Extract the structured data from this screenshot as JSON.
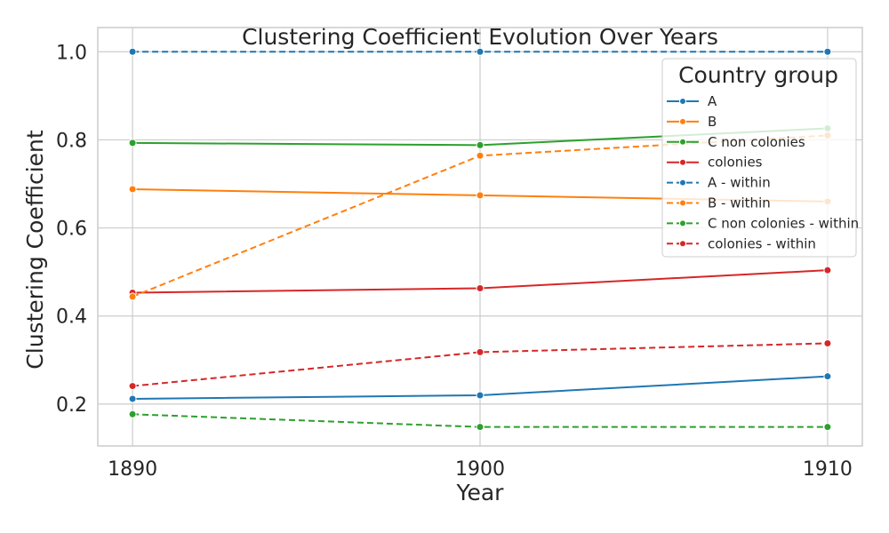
{
  "chart_data": {
    "type": "line",
    "title": "Clustering Coefficient Evolution Over Years",
    "xlabel": "Year",
    "ylabel": "Clustering Coefficient",
    "x": [
      1890,
      1900,
      1910
    ],
    "x_tick_labels": [
      "1890",
      "1900",
      "1910"
    ],
    "y_ticks": [
      0.2,
      0.4,
      0.6,
      0.8,
      1.0
    ],
    "y_tick_labels": [
      "0.2",
      "0.4",
      "0.6",
      "0.8",
      "1.0"
    ],
    "xlim": [
      1889,
      1911
    ],
    "ylim": [
      0.105,
      1.055
    ],
    "grid": true,
    "legend": {
      "title": "Country group",
      "placement": "top-right"
    },
    "series": [
      {
        "name": "A",
        "color": "#1f77b4",
        "dashed": false,
        "values": [
          0.212,
          0.22,
          0.263
        ]
      },
      {
        "name": "B",
        "color": "#ff7f0e",
        "dashed": false,
        "values": [
          0.688,
          0.674,
          0.66
        ]
      },
      {
        "name": "C non colonies",
        "color": "#2ca02c",
        "dashed": false,
        "values": [
          0.793,
          0.788,
          0.826
        ]
      },
      {
        "name": "colonies",
        "color": "#d62728",
        "dashed": false,
        "values": [
          0.453,
          0.463,
          0.504
        ]
      },
      {
        "name": "A - within",
        "color": "#1f77b4",
        "dashed": true,
        "values": [
          1.0,
          1.0,
          1.0
        ]
      },
      {
        "name": "B - within",
        "color": "#ff7f0e",
        "dashed": true,
        "values": [
          0.444,
          0.764,
          0.81
        ]
      },
      {
        "name": "C non colonies - within",
        "color": "#2ca02c",
        "dashed": true,
        "values": [
          0.177,
          0.148,
          0.148
        ]
      },
      {
        "name": "colonies - within",
        "color": "#d62728",
        "dashed": true,
        "values": [
          0.241,
          0.318,
          0.338
        ]
      }
    ]
  }
}
